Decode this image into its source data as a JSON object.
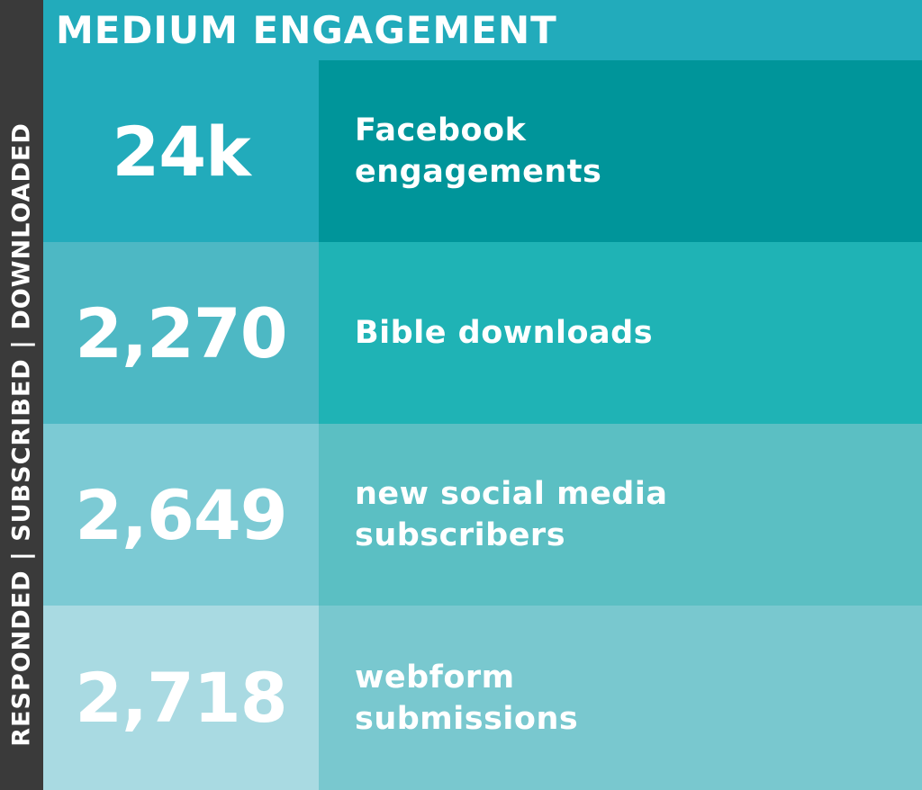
{
  "sidebar": {
    "label": "RESPONDED | SUBSCRIBED | DOWNLOADED"
  },
  "header": {
    "title": "MEDIUM ENGAGEMENT"
  },
  "rows": [
    {
      "value": "24k",
      "label": "Facebook engagements",
      "value_bg": "#22abbb",
      "label_bg": "#00959a"
    },
    {
      "value": "2,270",
      "label": "Bible downloads",
      "value_bg": "#4db8c4",
      "label_bg": "#1fb3b5"
    },
    {
      "value": "2,649",
      "label": "new social media subscribers",
      "value_bg": "#7ccad4",
      "label_bg": "#5bbfc3"
    },
    {
      "value": "2,718",
      "label": "webform submissions",
      "value_bg": "#a9dae2",
      "label_bg": "#79c8cf"
    }
  ]
}
